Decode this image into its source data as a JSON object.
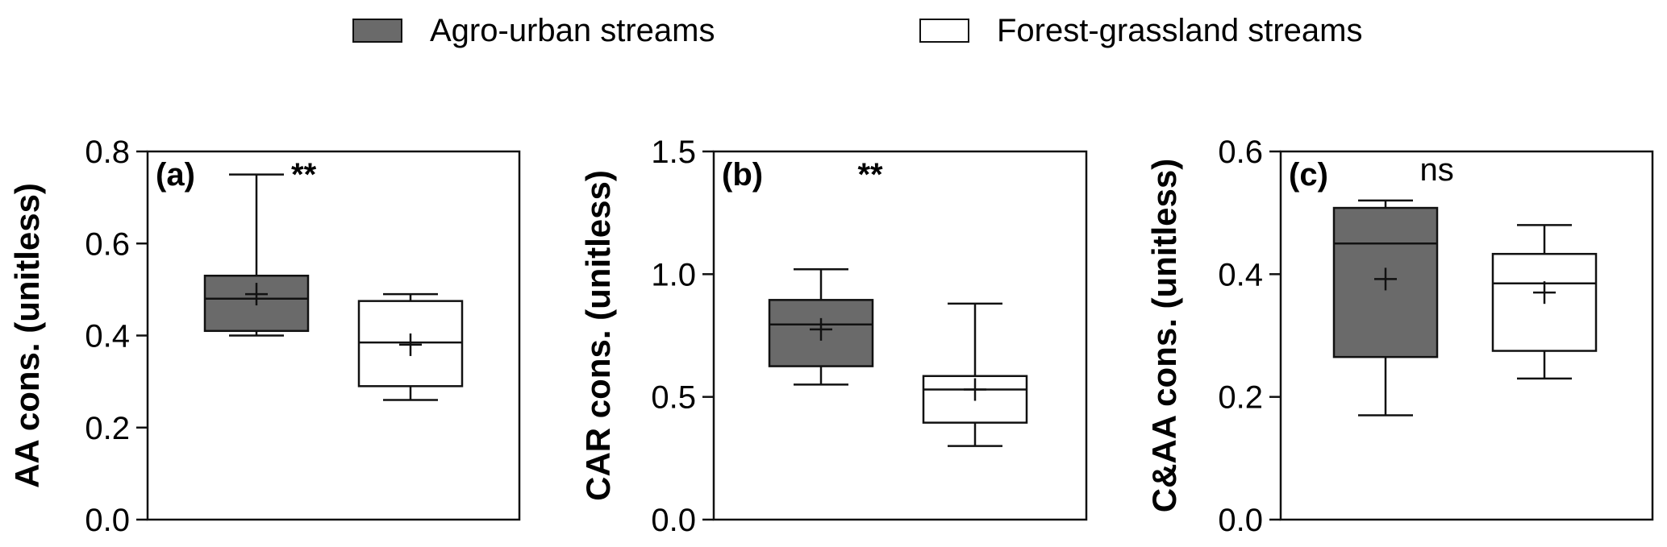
{
  "legend": {
    "items": [
      {
        "label": "Agro-urban streams",
        "fill": "#6a6a6a"
      },
      {
        "label": "Forest-grassland streams",
        "fill": "#ffffff"
      }
    ]
  },
  "chart_data": [
    {
      "type": "box",
      "panel_label": "(a)",
      "ylabel": "AA cons. (unitless)",
      "ylim": [
        0,
        0.8
      ],
      "yticks": [
        "0.0",
        "0.2",
        "0.4",
        "0.6",
        "0.8"
      ],
      "significance": "**",
      "series": [
        {
          "name": "Agro-urban streams",
          "whisker_low": 0.4,
          "q1": 0.41,
          "median": 0.48,
          "q3": 0.53,
          "whisker_high": 0.75,
          "mean": 0.49
        },
        {
          "name": "Forest-grassland streams",
          "whisker_low": 0.26,
          "q1": 0.29,
          "median": 0.385,
          "q3": 0.475,
          "whisker_high": 0.49,
          "mean": 0.38
        }
      ]
    },
    {
      "type": "box",
      "panel_label": "(b)",
      "ylabel": "CAR cons. (unitless)",
      "ylim": [
        0,
        1.5
      ],
      "yticks": [
        "0.0",
        "0.5",
        "1.0",
        "1.5"
      ],
      "significance": "**",
      "series": [
        {
          "name": "Agro-urban streams",
          "whisker_low": 0.55,
          "q1": 0.625,
          "median": 0.795,
          "q3": 0.895,
          "whisker_high": 1.02,
          "mean": 0.775
        },
        {
          "name": "Forest-grassland streams",
          "whisker_low": 0.3,
          "q1": 0.395,
          "median": 0.53,
          "q3": 0.585,
          "whisker_high": 0.88,
          "mean": 0.53
        }
      ]
    },
    {
      "type": "box",
      "panel_label": "(c)",
      "ylabel": "C&AA cons. (unitless)",
      "ylim": [
        0,
        0.6
      ],
      "yticks": [
        "0.0",
        "0.2",
        "0.4",
        "0.6"
      ],
      "significance": "ns",
      "series": [
        {
          "name": "Agro-urban streams",
          "whisker_low": 0.17,
          "q1": 0.265,
          "median": 0.45,
          "q3": 0.508,
          "whisker_high": 0.52,
          "mean": 0.392
        },
        {
          "name": "Forest-grassland streams",
          "whisker_low": 0.23,
          "q1": 0.275,
          "median": 0.385,
          "q3": 0.433,
          "whisker_high": 0.48,
          "mean": 0.37
        }
      ]
    }
  ]
}
